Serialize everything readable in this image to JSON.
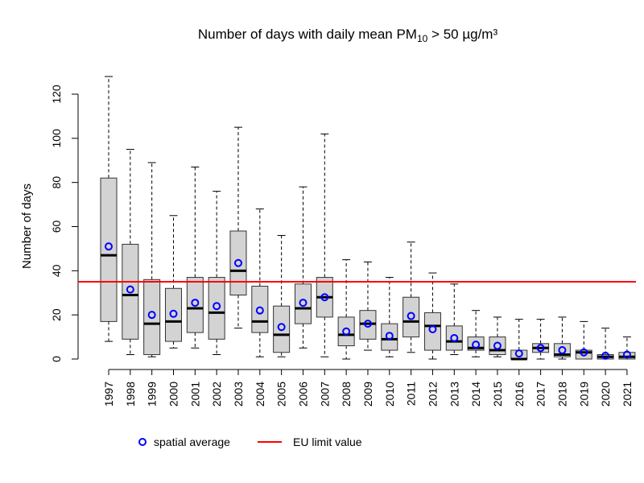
{
  "chart_data": {
    "type": "box",
    "title": "Number of days with daily mean PM",
    "title_subscript": "10",
    "title_suffix": " > 50 µg/m³",
    "xlabel": "",
    "ylabel": "Number of days",
    "ylim": [
      0,
      120
    ],
    "yticks": [
      0,
      20,
      40,
      60,
      80,
      100,
      120
    ],
    "grid": false,
    "legend_position": "bottom",
    "legend": [
      {
        "label": "spatial average",
        "marker": "circle",
        "color": "#0000ff"
      },
      {
        "label": "EU limit value",
        "marker": "line",
        "color": "#ff0000"
      }
    ],
    "reference_line": {
      "label": "EU limit value",
      "value": 35,
      "color": "#ff0000"
    },
    "box_fill": "#d3d3d3",
    "mean_color": "#0000ff",
    "categories": [
      "1997",
      "1998",
      "1999",
      "2000",
      "2001",
      "2002",
      "2003",
      "2004",
      "2005",
      "2006",
      "2007",
      "2008",
      "2009",
      "2010",
      "2011",
      "2012",
      "2013",
      "2014",
      "2015",
      "2016",
      "2017",
      "2018",
      "2019",
      "2020",
      "2021"
    ],
    "boxes": [
      {
        "min": 8,
        "q1": 17,
        "median": 47,
        "q3": 82,
        "max": 128,
        "mean": 51
      },
      {
        "min": 2,
        "q1": 9,
        "median": 29,
        "q3": 52,
        "max": 95,
        "mean": 31.5
      },
      {
        "min": 1,
        "q1": 2,
        "median": 16,
        "q3": 36,
        "max": 89,
        "mean": 20
      },
      {
        "min": 5,
        "q1": 8,
        "median": 17,
        "q3": 32,
        "max": 65,
        "mean": 20.5
      },
      {
        "min": 5,
        "q1": 12,
        "median": 23,
        "q3": 37,
        "max": 87,
        "mean": 25.5
      },
      {
        "min": 2,
        "q1": 9,
        "median": 21,
        "q3": 37,
        "max": 76,
        "mean": 24
      },
      {
        "min": 14,
        "q1": 29,
        "median": 40,
        "q3": 58,
        "max": 105,
        "mean": 43.5
      },
      {
        "min": 1,
        "q1": 12,
        "median": 17,
        "q3": 33,
        "max": 68,
        "mean": 22
      },
      {
        "min": 1,
        "q1": 3,
        "median": 11,
        "q3": 24,
        "max": 56,
        "mean": 14.5
      },
      {
        "min": 5,
        "q1": 16,
        "median": 23,
        "q3": 34,
        "max": 78,
        "mean": 25.5
      },
      {
        "min": 1,
        "q1": 19,
        "median": 28,
        "q3": 37,
        "max": 102,
        "mean": 28
      },
      {
        "min": 0,
        "q1": 6,
        "median": 11,
        "q3": 19,
        "max": 45,
        "mean": 12.5
      },
      {
        "min": 4,
        "q1": 9,
        "median": 16,
        "q3": 22,
        "max": 44,
        "mean": 16
      },
      {
        "min": 1,
        "q1": 4,
        "median": 9,
        "q3": 16,
        "max": 37,
        "mean": 10.5
      },
      {
        "min": 3,
        "q1": 10,
        "median": 17,
        "q3": 28,
        "max": 53,
        "mean": 19.5
      },
      {
        "min": 0,
        "q1": 4,
        "median": 15,
        "q3": 21,
        "max": 39,
        "mean": 13.5
      },
      {
        "min": 2,
        "q1": 4,
        "median": 8,
        "q3": 15,
        "max": 34,
        "mean": 9.5
      },
      {
        "min": 1,
        "q1": 4,
        "median": 5,
        "q3": 10,
        "max": 22,
        "mean": 6.5
      },
      {
        "min": 1,
        "q1": 2,
        "median": 4,
        "q3": 10,
        "max": 19,
        "mean": 6
      },
      {
        "min": 0,
        "q1": 0,
        "median": 0,
        "q3": 4,
        "max": 18,
        "mean": 2.5
      },
      {
        "min": 0,
        "q1": 3,
        "median": 5,
        "q3": 7,
        "max": 18,
        "mean": 5
      },
      {
        "min": 0,
        "q1": 1,
        "median": 2,
        "q3": 7,
        "max": 19,
        "mean": 4
      },
      {
        "min": 0,
        "q1": 0,
        "median": 3,
        "q3": 4,
        "max": 17,
        "mean": 3
      },
      {
        "min": 0,
        "q1": 0,
        "median": 1,
        "q3": 2,
        "max": 14,
        "mean": 1.5
      },
      {
        "min": 0,
        "q1": 0,
        "median": 1,
        "q3": 3,
        "max": 10,
        "mean": 2
      }
    ]
  }
}
